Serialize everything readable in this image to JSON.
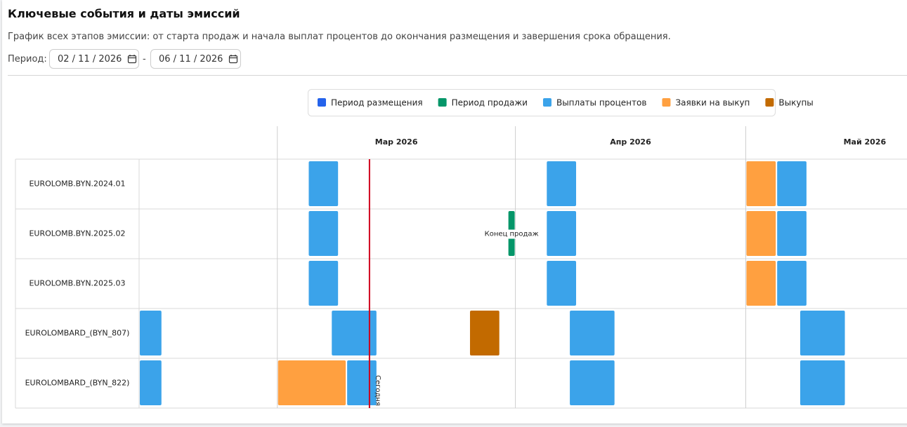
{
  "header": {
    "title": "Ключевые события и даты эмиссий",
    "subtitle": "График всех этапов эмиссии: от старта продаж и начала выплат процентов до окончания размещения и завершения срока обращения.",
    "period": {
      "label": "Период:",
      "from": "02 / 11 / 2026",
      "separator": "-",
      "to": "06 / 11 / 2026"
    }
  },
  "chart_data": {
    "type": "gantt",
    "rows": [
      "EUROLOMB.BYN.2024.01",
      "EUROLOMB.BYN.2025.02",
      "EUROLOMB.BYN.2025.03",
      "EUROLOMBARD_(BYN_807)",
      "EUROLOMBARD_(BYN_822)"
    ],
    "xlim": [
      "2026-02-11",
      "2026-05-22"
    ],
    "xticks": [
      {
        "value": "2026-03-01",
        "label": "Мар 2026"
      },
      {
        "value": "2026-04-01",
        "label": "Апр 2026"
      },
      {
        "value": "2026-05-01",
        "label": "Май 2026"
      }
    ],
    "series": [
      {
        "name": "Период размещения",
        "color": "#2563eb",
        "bars": []
      },
      {
        "name": "Период продажи",
        "color": "#059669",
        "bars": [
          {
            "row": 1,
            "start": "2026-03-31",
            "end": "2026-04-01",
            "label": "Конец продаж"
          }
        ]
      },
      {
        "name": "Выплаты процентов",
        "color": "#3ba3ea",
        "bars": [
          {
            "row": 0,
            "start": "2026-03-05",
            "end": "2026-03-09"
          },
          {
            "row": 0,
            "start": "2026-04-05",
            "end": "2026-04-09"
          },
          {
            "row": 0,
            "start": "2026-05-05",
            "end": "2026-05-09"
          },
          {
            "row": 1,
            "start": "2026-03-05",
            "end": "2026-03-09"
          },
          {
            "row": 1,
            "start": "2026-04-05",
            "end": "2026-04-09"
          },
          {
            "row": 1,
            "start": "2026-05-05",
            "end": "2026-05-09"
          },
          {
            "row": 2,
            "start": "2026-03-05",
            "end": "2026-03-09"
          },
          {
            "row": 2,
            "start": "2026-04-05",
            "end": "2026-04-09"
          },
          {
            "row": 2,
            "start": "2026-05-05",
            "end": "2026-05-09"
          },
          {
            "row": 3,
            "start": "2026-02-11",
            "end": "2026-02-14"
          },
          {
            "row": 3,
            "start": "2026-03-08",
            "end": "2026-03-14"
          },
          {
            "row": 3,
            "start": "2026-04-08",
            "end": "2026-04-14"
          },
          {
            "row": 3,
            "start": "2026-05-08",
            "end": "2026-05-14"
          },
          {
            "row": 4,
            "start": "2026-02-11",
            "end": "2026-02-14"
          },
          {
            "row": 4,
            "start": "2026-03-10",
            "end": "2026-03-14"
          },
          {
            "row": 4,
            "start": "2026-04-08",
            "end": "2026-04-14"
          },
          {
            "row": 4,
            "start": "2026-05-08",
            "end": "2026-05-14"
          }
        ]
      },
      {
        "name": "Заявки на выкуп",
        "color": "#ffa040",
        "bars": [
          {
            "row": 0,
            "start": "2026-05-01",
            "end": "2026-05-05"
          },
          {
            "row": 1,
            "start": "2026-05-01",
            "end": "2026-05-05"
          },
          {
            "row": 2,
            "start": "2026-05-01",
            "end": "2026-05-05"
          },
          {
            "row": 4,
            "start": "2026-03-01",
            "end": "2026-03-10"
          }
        ]
      },
      {
        "name": "Выкупы",
        "color": "#c26a00",
        "bars": [
          {
            "row": 3,
            "start": "2026-03-26",
            "end": "2026-03-30"
          }
        ]
      }
    ],
    "today": {
      "date": "2026-03-13",
      "label": "Сегодня",
      "color": "#d0021b"
    },
    "grid": true
  }
}
